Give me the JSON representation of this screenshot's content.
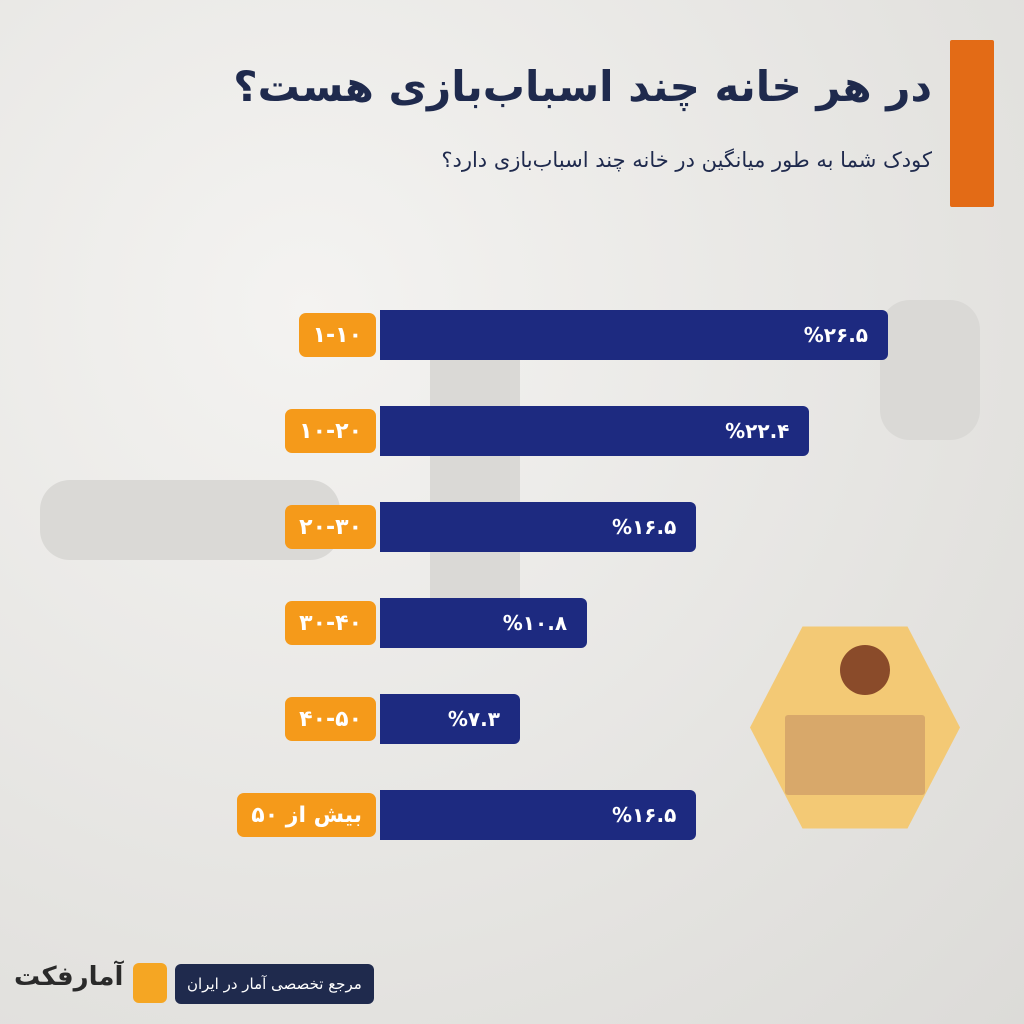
{
  "header": {
    "title": "در هر خانه چند اسباب‌بازی هست؟",
    "subtitle": "کودک شما به طور میانگین در خانه چند اسباب‌بازی دارد؟"
  },
  "chart_data": {
    "type": "bar",
    "orientation": "horizontal",
    "title": "در هر خانه چند اسباب‌بازی هست؟",
    "categories": [
      "۱-۱۰",
      "۱۰-۲۰",
      "۲۰-۳۰",
      "۳۰-۴۰",
      "۴۰-۵۰",
      "بیش از ۵۰"
    ],
    "values": [
      26.5,
      22.4,
      16.5,
      10.8,
      7.3,
      16.5
    ],
    "value_labels": [
      "%۲۶.۵",
      "%۲۲.۴",
      "%۱۶.۵",
      "%۱۰.۸",
      "%۷.۳",
      "%۱۶.۵"
    ],
    "unit": "%",
    "xlim": [
      0,
      26.5
    ]
  },
  "colors": {
    "bar": "#1d2a80",
    "category": "#f59a1a",
    "accent": "#e36b16"
  },
  "footer": {
    "tagline": "مرجع تخصصی آمار در ایران",
    "brand": "آمارفکت"
  }
}
